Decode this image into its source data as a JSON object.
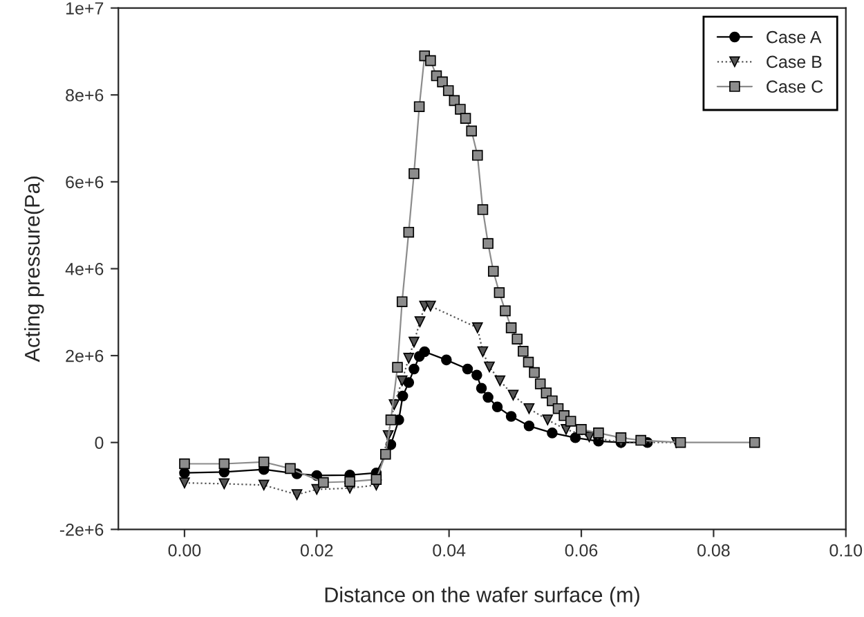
{
  "chart_data": {
    "type": "line",
    "xlabel": "Distance on the wafer surface (m)",
    "ylabel": "Acting pressure(Pa)",
    "xlim": [
      -0.01,
      0.1
    ],
    "xticks": [
      {
        "value": 0,
        "label": "0.00"
      },
      {
        "value": 0.02,
        "label": "0.02"
      },
      {
        "value": 0.04,
        "label": "0.04"
      },
      {
        "value": 0.06,
        "label": "0.06"
      },
      {
        "value": 0.08,
        "label": "0.08"
      },
      {
        "value": 0.1,
        "label": "0.10"
      }
    ],
    "ylim": [
      -2000000,
      10000000
    ],
    "yticks": [
      {
        "value": -2000000,
        "label": "-2e+6"
      },
      0,
      {
        "value": 2000000,
        "label": "2e+6"
      },
      {
        "value": 4000000,
        "label": "4e+6"
      },
      {
        "value": 6000000,
        "label": "6e+6"
      },
      {
        "value": 8000000,
        "label": "8e+6"
      },
      {
        "value": 10000000,
        "label": "1e+7"
      }
    ],
    "legend": "top right",
    "grid": false,
    "series": [
      {
        "name": "Case A",
        "color": "#000000",
        "marker": "circle",
        "line_style": "solid",
        "x": [
          0,
          0.006,
          0.012,
          0.017,
          0.02,
          0.025,
          0.029,
          0.0312,
          0.0324,
          0.033,
          0.0339,
          0.0347,
          0.0355,
          0.0363,
          0.0396,
          0.0428,
          0.0442,
          0.0449,
          0.0459,
          0.0473,
          0.0494,
          0.0521,
          0.0556,
          0.0591,
          0.0626,
          0.066,
          0.07
        ],
        "values": [
          -700000,
          -680000,
          -620000,
          -720000,
          -760000,
          -750000,
          -700000,
          -50000,
          520000,
          1070000,
          1380000,
          1690000,
          1980000,
          2090000,
          1900000,
          1690000,
          1550000,
          1250000,
          1040000,
          820000,
          600000,
          380000,
          220000,
          110000,
          30000,
          0,
          0
        ]
      },
      {
        "name": "Case B",
        "color": "#555555",
        "marker": "triangle",
        "line_style": "dotted",
        "x": [
          0,
          0.006,
          0.012,
          0.017,
          0.02,
          0.025,
          0.029,
          0.0308,
          0.0317,
          0.0329,
          0.0339,
          0.0347,
          0.0356,
          0.0363,
          0.0372,
          0.0443,
          0.0451,
          0.0461,
          0.0477,
          0.0497,
          0.0521,
          0.0549,
          0.0577,
          0.0612,
          0.066,
          0.0744
        ],
        "values": [
          -930000,
          -950000,
          -980000,
          -1200000,
          -1080000,
          -1050000,
          -980000,
          160000,
          870000,
          1420000,
          1940000,
          2310000,
          2780000,
          3140000,
          3140000,
          2640000,
          2090000,
          1740000,
          1420000,
          1090000,
          780000,
          520000,
          300000,
          130000,
          0,
          0
        ]
      },
      {
        "name": "Case C",
        "color": "#8c8c8c",
        "marker": "square",
        "line_style": "solid",
        "x": [
          0,
          0.006,
          0.012,
          0.016,
          0.021,
          0.025,
          0.029,
          0.0304,
          0.0312,
          0.0322,
          0.0329,
          0.0339,
          0.0347,
          0.0355,
          0.0363,
          0.0372,
          0.0381,
          0.039,
          0.0399,
          0.0408,
          0.0417,
          0.0425,
          0.0434,
          0.0443,
          0.0451,
          0.0459,
          0.0467,
          0.0476,
          0.0485,
          0.0494,
          0.0503,
          0.0512,
          0.052,
          0.0529,
          0.0538,
          0.0547,
          0.0556,
          0.0565,
          0.0574,
          0.0584,
          0.06,
          0.0626,
          0.066,
          0.069,
          0.075,
          0.0862
        ],
        "values": [
          -490000,
          -490000,
          -450000,
          -600000,
          -920000,
          -900000,
          -850000,
          -270000,
          520000,
          1730000,
          3240000,
          4840000,
          6190000,
          7730000,
          8900000,
          8790000,
          8440000,
          8300000,
          8100000,
          7870000,
          7670000,
          7460000,
          7170000,
          6610000,
          5360000,
          4580000,
          3940000,
          3450000,
          3030000,
          2640000,
          2380000,
          2100000,
          1850000,
          1610000,
          1350000,
          1140000,
          960000,
          780000,
          620000,
          490000,
          300000,
          220000,
          110000,
          50000,
          0,
          0
        ]
      }
    ]
  }
}
